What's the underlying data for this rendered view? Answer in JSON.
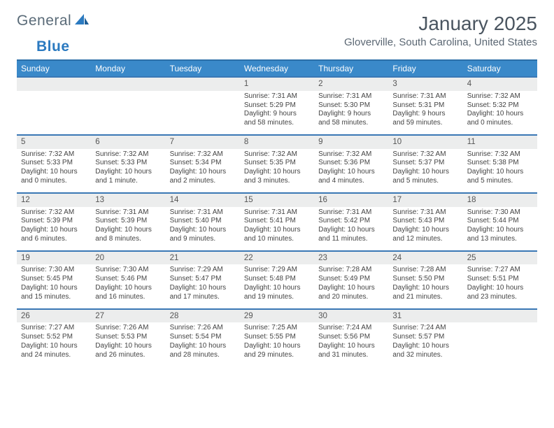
{
  "brand": {
    "name1": "General",
    "name2": "Blue"
  },
  "title": "January 2025",
  "location": "Gloverville, South Carolina, United States",
  "colors": {
    "header_bg": "#3a89c9",
    "header_border": "#2b6fa8",
    "daynum_bg": "#eceded",
    "daynum_border": "#3a78b5",
    "text": "#444444",
    "muted": "#5a6b78",
    "accent": "#2b7ac0"
  },
  "day_headers": [
    "Sunday",
    "Monday",
    "Tuesday",
    "Wednesday",
    "Thursday",
    "Friday",
    "Saturday"
  ],
  "weeks": [
    [
      null,
      null,
      null,
      {
        "n": "1",
        "sr": "7:31 AM",
        "ss": "5:29 PM",
        "dl": "9 hours and 58 minutes."
      },
      {
        "n": "2",
        "sr": "7:31 AM",
        "ss": "5:30 PM",
        "dl": "9 hours and 58 minutes."
      },
      {
        "n": "3",
        "sr": "7:31 AM",
        "ss": "5:31 PM",
        "dl": "9 hours and 59 minutes."
      },
      {
        "n": "4",
        "sr": "7:32 AM",
        "ss": "5:32 PM",
        "dl": "10 hours and 0 minutes."
      }
    ],
    [
      {
        "n": "5",
        "sr": "7:32 AM",
        "ss": "5:33 PM",
        "dl": "10 hours and 0 minutes."
      },
      {
        "n": "6",
        "sr": "7:32 AM",
        "ss": "5:33 PM",
        "dl": "10 hours and 1 minute."
      },
      {
        "n": "7",
        "sr": "7:32 AM",
        "ss": "5:34 PM",
        "dl": "10 hours and 2 minutes."
      },
      {
        "n": "8",
        "sr": "7:32 AM",
        "ss": "5:35 PM",
        "dl": "10 hours and 3 minutes."
      },
      {
        "n": "9",
        "sr": "7:32 AM",
        "ss": "5:36 PM",
        "dl": "10 hours and 4 minutes."
      },
      {
        "n": "10",
        "sr": "7:32 AM",
        "ss": "5:37 PM",
        "dl": "10 hours and 5 minutes."
      },
      {
        "n": "11",
        "sr": "7:32 AM",
        "ss": "5:38 PM",
        "dl": "10 hours and 5 minutes."
      }
    ],
    [
      {
        "n": "12",
        "sr": "7:32 AM",
        "ss": "5:39 PM",
        "dl": "10 hours and 6 minutes."
      },
      {
        "n": "13",
        "sr": "7:31 AM",
        "ss": "5:39 PM",
        "dl": "10 hours and 8 minutes."
      },
      {
        "n": "14",
        "sr": "7:31 AM",
        "ss": "5:40 PM",
        "dl": "10 hours and 9 minutes."
      },
      {
        "n": "15",
        "sr": "7:31 AM",
        "ss": "5:41 PM",
        "dl": "10 hours and 10 minutes."
      },
      {
        "n": "16",
        "sr": "7:31 AM",
        "ss": "5:42 PM",
        "dl": "10 hours and 11 minutes."
      },
      {
        "n": "17",
        "sr": "7:31 AM",
        "ss": "5:43 PM",
        "dl": "10 hours and 12 minutes."
      },
      {
        "n": "18",
        "sr": "7:30 AM",
        "ss": "5:44 PM",
        "dl": "10 hours and 13 minutes."
      }
    ],
    [
      {
        "n": "19",
        "sr": "7:30 AM",
        "ss": "5:45 PM",
        "dl": "10 hours and 15 minutes."
      },
      {
        "n": "20",
        "sr": "7:30 AM",
        "ss": "5:46 PM",
        "dl": "10 hours and 16 minutes."
      },
      {
        "n": "21",
        "sr": "7:29 AM",
        "ss": "5:47 PM",
        "dl": "10 hours and 17 minutes."
      },
      {
        "n": "22",
        "sr": "7:29 AM",
        "ss": "5:48 PM",
        "dl": "10 hours and 19 minutes."
      },
      {
        "n": "23",
        "sr": "7:28 AM",
        "ss": "5:49 PM",
        "dl": "10 hours and 20 minutes."
      },
      {
        "n": "24",
        "sr": "7:28 AM",
        "ss": "5:50 PM",
        "dl": "10 hours and 21 minutes."
      },
      {
        "n": "25",
        "sr": "7:27 AM",
        "ss": "5:51 PM",
        "dl": "10 hours and 23 minutes."
      }
    ],
    [
      {
        "n": "26",
        "sr": "7:27 AM",
        "ss": "5:52 PM",
        "dl": "10 hours and 24 minutes."
      },
      {
        "n": "27",
        "sr": "7:26 AM",
        "ss": "5:53 PM",
        "dl": "10 hours and 26 minutes."
      },
      {
        "n": "28",
        "sr": "7:26 AM",
        "ss": "5:54 PM",
        "dl": "10 hours and 28 minutes."
      },
      {
        "n": "29",
        "sr": "7:25 AM",
        "ss": "5:55 PM",
        "dl": "10 hours and 29 minutes."
      },
      {
        "n": "30",
        "sr": "7:24 AM",
        "ss": "5:56 PM",
        "dl": "10 hours and 31 minutes."
      },
      {
        "n": "31",
        "sr": "7:24 AM",
        "ss": "5:57 PM",
        "dl": "10 hours and 32 minutes."
      },
      null
    ]
  ]
}
